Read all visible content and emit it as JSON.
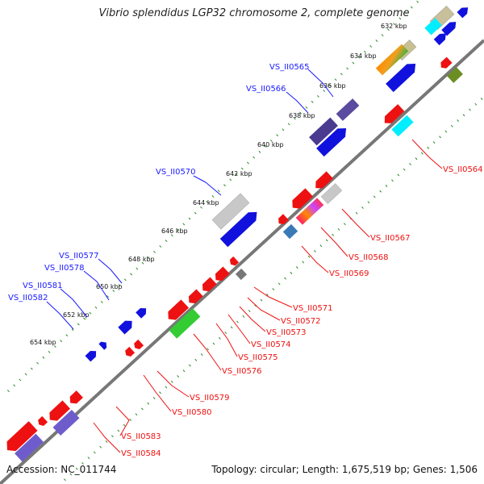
{
  "title": "Vibrio splendidus LGP32 chromosome 2, complete genome",
  "footer": {
    "accession": "Accession: NC_011744",
    "summary": "Topology: circular; Length: 1,675,519 bp; Genes: 1,506"
  },
  "scale_labels": [
    "632 kbp",
    "634 kbp",
    "636 kbp",
    "638 kbp",
    "640 kbp",
    "642 kbp",
    "644 kbp",
    "646 kbp",
    "648 kbp",
    "650 kbp",
    "652 kbp",
    "654 kbp"
  ],
  "gene_labels_forward": [
    "VS_II0565",
    "VS_II0566",
    "VS_II0570",
    "VS_II0577",
    "VS_II0578",
    "VS_II0581",
    "VS_II0582"
  ],
  "gene_labels_reverse": [
    "VS_II0564",
    "VS_II0567",
    "VS_II0568",
    "VS_II0569",
    "VS_II0571",
    "VS_II0572",
    "VS_II0573",
    "VS_II0574",
    "VS_II0575",
    "VS_II0576",
    "VS_II0579",
    "VS_II0580",
    "VS_II0583",
    "VS_II0584"
  ],
  "colors": {
    "forward_label": "#1a1aff",
    "reverse_label": "#ee1111",
    "backbone": "#777777",
    "tick": "#228822"
  }
}
